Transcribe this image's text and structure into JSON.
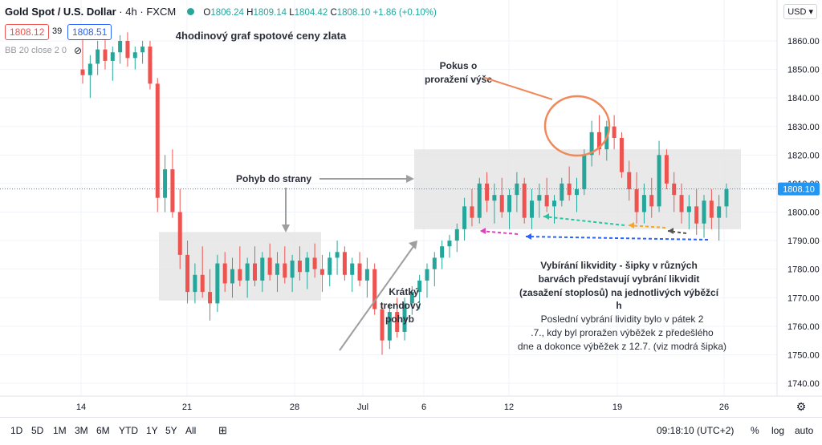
{
  "header": {
    "symbol": "Gold Spot / U.S. Dollar",
    "interval": "4h",
    "exchange": "FXCM",
    "ohlc": {
      "o": "1806.24",
      "h": "1809.14",
      "l": "1804.42",
      "c": "1808.10",
      "change": "+1.86 (+0.10%)"
    },
    "bid": "1808.12",
    "spread": "39",
    "ask": "1808.51",
    "indicator": "BB 20 close 2 0",
    "currency": "USD",
    "status_color": "#26a69a"
  },
  "annotations": {
    "title": "4hodinový graf spotové ceny zlata",
    "breakout": "Pokus o proražení výše",
    "sideways": "Pohyb do strany",
    "trend": "Krátký trendový pohyb",
    "liquidity_bold": "Vybírání likvidity - šipky v různých barvách představují vybrání likvidity (zasažení stoplosů) na jednotlivých výběžcích",
    "liquidity_note": "Poslední vybrání lividity bylo v pátek 23.7., kdy byl proražen výběžek z předešlého dne a dokonce výběžek z 12.7. (viz modrá šipka)"
  },
  "bottom_bar": {
    "timeframes": [
      "1D",
      "5D",
      "1M",
      "3M",
      "6M",
      "YTD",
      "1Y",
      "5Y",
      "All"
    ],
    "clock": "09:18:10 (UTC+2)",
    "options": [
      "%",
      "log",
      "auto"
    ]
  },
  "chart_data": {
    "type": "candlestick",
    "y_axis": {
      "ticks": [
        1740,
        1750,
        1760,
        1770,
        1780,
        1790,
        1800,
        1810,
        1820,
        1830,
        1840,
        1850,
        1860
      ],
      "range": [
        1734,
        1866
      ]
    },
    "x_axis": {
      "tick_labels": [
        "14",
        "21",
        "28",
        "Jul",
        "6",
        "12",
        "19",
        "26"
      ]
    },
    "current_price": 1808.1,
    "up_color": "#26a69a",
    "down_color": "#ef5350",
    "candles": [
      [
        1850,
        1862,
        1845,
        1848
      ],
      [
        1848,
        1855,
        1840,
        1852
      ],
      [
        1852,
        1860,
        1848,
        1857
      ],
      [
        1857,
        1862,
        1850,
        1853
      ],
      [
        1853,
        1858,
        1846,
        1856
      ],
      [
        1856,
        1862,
        1852,
        1860
      ],
      [
        1860,
        1863,
        1851,
        1854
      ],
      [
        1854,
        1858,
        1850,
        1856
      ],
      [
        1856,
        1860,
        1852,
        1858
      ],
      [
        1858,
        1860,
        1843,
        1845
      ],
      [
        1845,
        1847,
        1800,
        1805
      ],
      [
        1805,
        1820,
        1800,
        1815
      ],
      [
        1815,
        1822,
        1798,
        1800
      ],
      [
        1800,
        1808,
        1780,
        1785
      ],
      [
        1785,
        1790,
        1768,
        1772
      ],
      [
        1772,
        1782,
        1768,
        1778
      ],
      [
        1778,
        1788,
        1770,
        1772
      ],
      [
        1772,
        1780,
        1762,
        1768
      ],
      [
        1768,
        1785,
        1765,
        1782
      ],
      [
        1782,
        1786,
        1772,
        1775
      ],
      [
        1775,
        1784,
        1770,
        1780
      ],
      [
        1780,
        1788,
        1774,
        1776
      ],
      [
        1776,
        1784,
        1770,
        1782
      ],
      [
        1782,
        1788,
        1774,
        1776
      ],
      [
        1776,
        1786,
        1772,
        1784
      ],
      [
        1784,
        1789,
        1776,
        1778
      ],
      [
        1778,
        1786,
        1772,
        1782
      ],
      [
        1782,
        1788,
        1775,
        1777
      ],
      [
        1777,
        1785,
        1772,
        1783
      ],
      [
        1783,
        1788,
        1776,
        1779
      ],
      [
        1779,
        1786,
        1773,
        1784
      ],
      [
        1784,
        1789,
        1777,
        1780
      ],
      [
        1780,
        1785,
        1772,
        1778
      ],
      [
        1778,
        1786,
        1774,
        1784
      ],
      [
        1784,
        1790,
        1778,
        1786
      ],
      [
        1786,
        1788,
        1776,
        1778
      ],
      [
        1778,
        1784,
        1772,
        1782
      ],
      [
        1782,
        1786,
        1774,
        1776
      ],
      [
        1776,
        1784,
        1770,
        1780
      ],
      [
        1780,
        1782,
        1764,
        1766
      ],
      [
        1766,
        1768,
        1750,
        1755
      ],
      [
        1755,
        1768,
        1752,
        1765
      ],
      [
        1765,
        1770,
        1756,
        1758
      ],
      [
        1758,
        1770,
        1755,
        1768
      ],
      [
        1768,
        1774,
        1764,
        1772
      ],
      [
        1772,
        1778,
        1766,
        1776
      ],
      [
        1776,
        1782,
        1770,
        1780
      ],
      [
        1780,
        1786,
        1774,
        1784
      ],
      [
        1784,
        1790,
        1780,
        1788
      ],
      [
        1788,
        1792,
        1784,
        1790
      ],
      [
        1790,
        1796,
        1786,
        1794
      ],
      [
        1794,
        1805,
        1790,
        1802
      ],
      [
        1802,
        1808,
        1795,
        1798
      ],
      [
        1798,
        1812,
        1796,
        1810
      ],
      [
        1810,
        1814,
        1800,
        1804
      ],
      [
        1804,
        1810,
        1796,
        1806
      ],
      [
        1806,
        1812,
        1798,
        1800
      ],
      [
        1800,
        1808,
        1794,
        1806
      ],
      [
        1806,
        1814,
        1800,
        1810
      ],
      [
        1810,
        1812,
        1796,
        1798
      ],
      [
        1798,
        1808,
        1794,
        1804
      ],
      [
        1804,
        1810,
        1798,
        1806
      ],
      [
        1806,
        1812,
        1800,
        1802
      ],
      [
        1802,
        1806,
        1796,
        1804
      ],
      [
        1804,
        1812,
        1802,
        1810
      ],
      [
        1810,
        1816,
        1804,
        1806
      ],
      [
        1806,
        1812,
        1800,
        1808
      ],
      [
        1808,
        1822,
        1806,
        1820
      ],
      [
        1820,
        1832,
        1816,
        1828
      ],
      [
        1828,
        1834,
        1820,
        1822
      ],
      [
        1822,
        1832,
        1818,
        1830
      ],
      [
        1830,
        1834,
        1822,
        1826
      ],
      [
        1826,
        1828,
        1812,
        1814
      ],
      [
        1814,
        1818,
        1804,
        1808
      ],
      [
        1808,
        1814,
        1796,
        1800
      ],
      [
        1800,
        1810,
        1796,
        1806
      ],
      [
        1806,
        1812,
        1798,
        1802
      ],
      [
        1802,
        1825,
        1800,
        1820
      ],
      [
        1820,
        1822,
        1808,
        1810
      ],
      [
        1810,
        1814,
        1800,
        1806
      ],
      [
        1806,
        1810,
        1796,
        1800
      ],
      [
        1800,
        1806,
        1794,
        1802
      ],
      [
        1802,
        1808,
        1792,
        1796
      ],
      [
        1796,
        1806,
        1791,
        1804
      ],
      [
        1804,
        1808,
        1794,
        1798
      ],
      [
        1798,
        1806,
        1790,
        1802
      ],
      [
        1802,
        1810,
        1798,
        1808
      ]
    ]
  }
}
